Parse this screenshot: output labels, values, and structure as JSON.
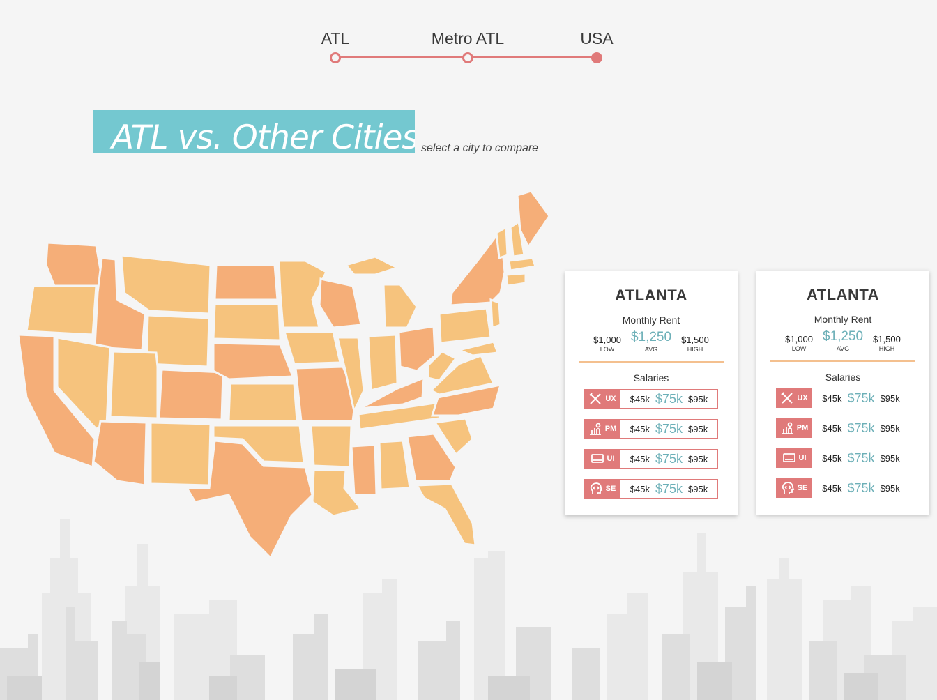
{
  "stepper": {
    "steps": [
      {
        "label": "ATL",
        "active": false
      },
      {
        "label": "Metro ATL",
        "active": false
      },
      {
        "label": "USA",
        "active": true
      }
    ],
    "accent": "#e07a7a"
  },
  "header": {
    "title": "ATL vs. Other Cities",
    "subtitle": "select a city to compare",
    "title_bg": "#74c8d0"
  },
  "map": {
    "fill_light": "#f6c37d",
    "fill_dark": "#f5ae78"
  },
  "cards": [
    {
      "city": "ATLANTA",
      "rent_title": "Monthly Rent",
      "rent": {
        "low": "$1,000",
        "low_label": "LOW",
        "avg": "$1,250",
        "avg_label": "AVG",
        "high": "$1,500",
        "high_label": "HIGH"
      },
      "salaries_title": "Salaries",
      "salaries": [
        {
          "role": "UX",
          "icon": "pencil-ruler-icon",
          "low": "$45k",
          "avg": "$75k",
          "high": "$95k"
        },
        {
          "role": "PM",
          "icon": "presenter-chart-icon",
          "low": "$45k",
          "avg": "$75k",
          "high": "$95k"
        },
        {
          "role": "UI",
          "icon": "monitor-icon",
          "low": "$45k",
          "avg": "$75k",
          "high": "$95k"
        },
        {
          "role": "SE",
          "icon": "code-head-icon",
          "low": "$45k",
          "avg": "$75k",
          "high": "$95k"
        }
      ]
    },
    {
      "city": "ATLANTA",
      "rent_title": "Monthly Rent",
      "rent": {
        "low": "$1,000",
        "low_label": "LOW",
        "avg": "$1,250",
        "avg_label": "AVG",
        "high": "$1,500",
        "high_label": "HIGH"
      },
      "salaries_title": "Salaries",
      "salaries": [
        {
          "role": "UX",
          "icon": "pencil-ruler-icon",
          "low": "$45k",
          "avg": "$75k",
          "high": "$95k"
        },
        {
          "role": "PM",
          "icon": "presenter-chart-icon",
          "low": "$45k",
          "avg": "$75k",
          "high": "$95k"
        },
        {
          "role": "UI",
          "icon": "monitor-icon",
          "low": "$45k",
          "avg": "$75k",
          "high": "$95k"
        },
        {
          "role": "SE",
          "icon": "code-head-icon",
          "low": "$45k",
          "avg": "$75k",
          "high": "$95k"
        }
      ]
    }
  ]
}
